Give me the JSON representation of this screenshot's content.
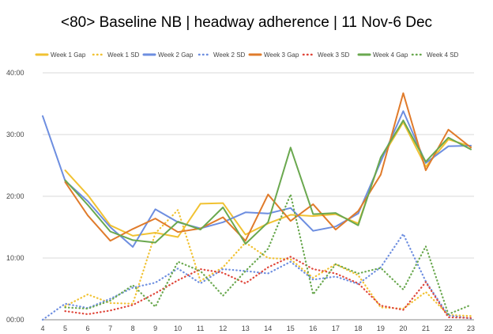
{
  "chart_data": {
    "type": "line",
    "title": "<80> Baseline NB | headway adherence | 11 Nov-6 Dec",
    "xlabel": "",
    "ylabel": "",
    "x": [
      4,
      5,
      6,
      7,
      8,
      9,
      10,
      11,
      12,
      13,
      14,
      15,
      16,
      17,
      18,
      19,
      20,
      21,
      22,
      23
    ],
    "y_ticks": [
      "00:00",
      "10:00",
      "20:00",
      "30:00",
      "40:00"
    ],
    "ylim": [
      0,
      40
    ],
    "grid": true,
    "legend_position": "top",
    "series": [
      {
        "name": "Week 1 Gap",
        "color": "#f1c232",
        "style": "solid",
        "values": [
          null,
          24.2,
          20.2,
          15.3,
          13.6,
          14.1,
          13.4,
          18.8,
          18.9,
          13.8,
          15.6,
          17.0,
          16.8,
          17.1,
          15.6,
          26.0,
          32.0,
          24.8,
          29.2,
          28.1
        ]
      },
      {
        "name": "Week 1 SD",
        "color": "#f1c232",
        "style": "dotted",
        "values": [
          null,
          2.2,
          4.1,
          2.7,
          2.6,
          14.0,
          17.8,
          6.3,
          8.5,
          12.5,
          10.0,
          9.8,
          6.8,
          9.0,
          7.2,
          2.0,
          1.8,
          4.5,
          0.8,
          0.6
        ]
      },
      {
        "name": "Week 2 Gap",
        "color": "#6d8ee0",
        "style": "solid",
        "values": [
          33.0,
          22.5,
          19.2,
          15.0,
          11.8,
          17.9,
          15.8,
          14.8,
          15.8,
          17.4,
          17.2,
          18.1,
          14.4,
          15.1,
          17.2,
          25.6,
          33.8,
          25.4,
          28.1,
          28.2
        ]
      },
      {
        "name": "Week 2 SD",
        "color": "#6d8ee0",
        "style": "dotted",
        "values": [
          0.0,
          2.6,
          1.9,
          3.4,
          5.2,
          6.0,
          8.3,
          5.9,
          8.2,
          7.9,
          7.5,
          9.4,
          6.5,
          7.0,
          5.8,
          8.5,
          13.9,
          6.2,
          0.7,
          0.2
        ]
      },
      {
        "name": "Week 3 Gap",
        "color": "#e07b2b",
        "style": "solid",
        "values": [
          null,
          22.3,
          16.9,
          12.8,
          14.7,
          16.4,
          14.2,
          14.8,
          16.6,
          12.8,
          20.3,
          16.0,
          18.7,
          14.6,
          17.6,
          23.5,
          36.7,
          24.2,
          30.8,
          27.9
        ]
      },
      {
        "name": "Week 3 SD",
        "color": "#e0463a",
        "style": "dotted",
        "values": [
          null,
          1.4,
          0.9,
          1.5,
          2.4,
          4.3,
          6.4,
          8.2,
          7.6,
          5.9,
          8.5,
          10.2,
          8.2,
          7.5,
          5.9,
          2.3,
          1.6,
          6.1,
          0.4,
          0.3
        ]
      },
      {
        "name": "Week 4 Gap",
        "color": "#6aa84f",
        "style": "solid",
        "values": [
          null,
          22.6,
          18.6,
          14.3,
          12.9,
          12.5,
          15.9,
          14.6,
          18.2,
          12.3,
          15.8,
          27.9,
          17.1,
          17.3,
          15.3,
          26.3,
          32.3,
          25.6,
          29.5,
          27.6
        ]
      },
      {
        "name": "Week 4 SD",
        "color": "#6aa84f",
        "style": "dotted",
        "values": [
          null,
          2.0,
          1.8,
          3.1,
          5.6,
          2.1,
          9.4,
          7.9,
          3.9,
          7.9,
          11.5,
          20.3,
          4.1,
          9.0,
          7.5,
          8.4,
          4.9,
          11.9,
          0.9,
          2.4
        ]
      }
    ]
  }
}
